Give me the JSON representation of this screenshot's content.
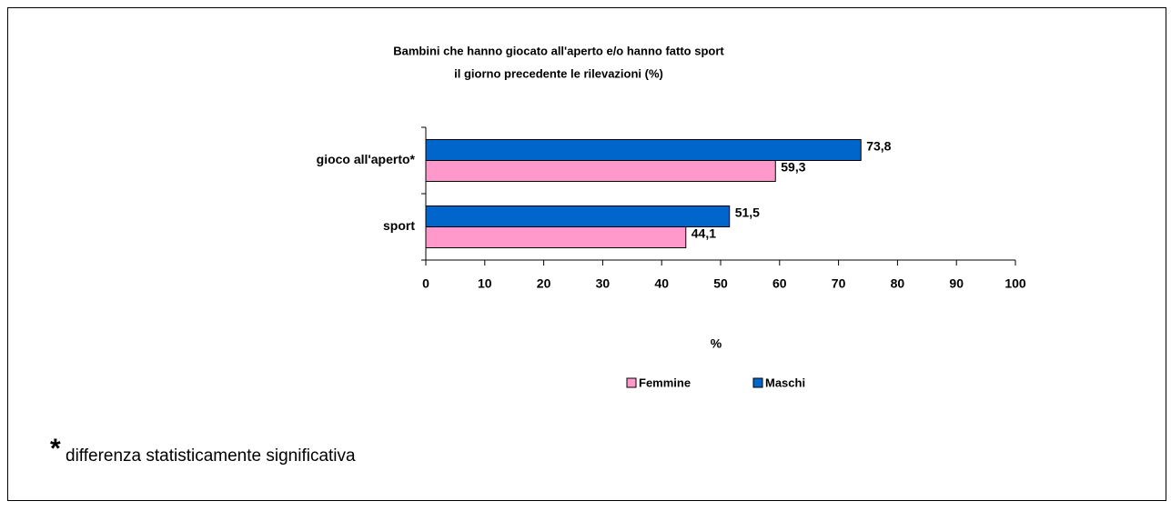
{
  "chart_data": {
    "type": "hbar",
    "title": "Bambini che hanno giocato all'aperto e/o hanno fatto sport",
    "subtitle": "il giorno precedente le rilevazioni (%)",
    "categories": [
      "gioco all'aperto*",
      "sport"
    ],
    "series": [
      {
        "name": "Femmine",
        "color": "#ff99cc",
        "values": [
          59.3,
          44.1
        ],
        "value_labels": [
          "59,3",
          "44,1"
        ]
      },
      {
        "name": "Maschi",
        "color": "#0066cc",
        "values": [
          73.8,
          51.5
        ],
        "value_labels": [
          "73,8",
          "51,5"
        ]
      }
    ],
    "xlabel": "%",
    "xlim": [
      0,
      100
    ],
    "xticks": [
      0,
      10,
      20,
      30,
      40,
      50,
      60,
      70,
      80,
      90,
      100
    ],
    "legend": "bottom",
    "footnote_marker": "*",
    "footnote": "differenza  statisticamente significativa"
  }
}
